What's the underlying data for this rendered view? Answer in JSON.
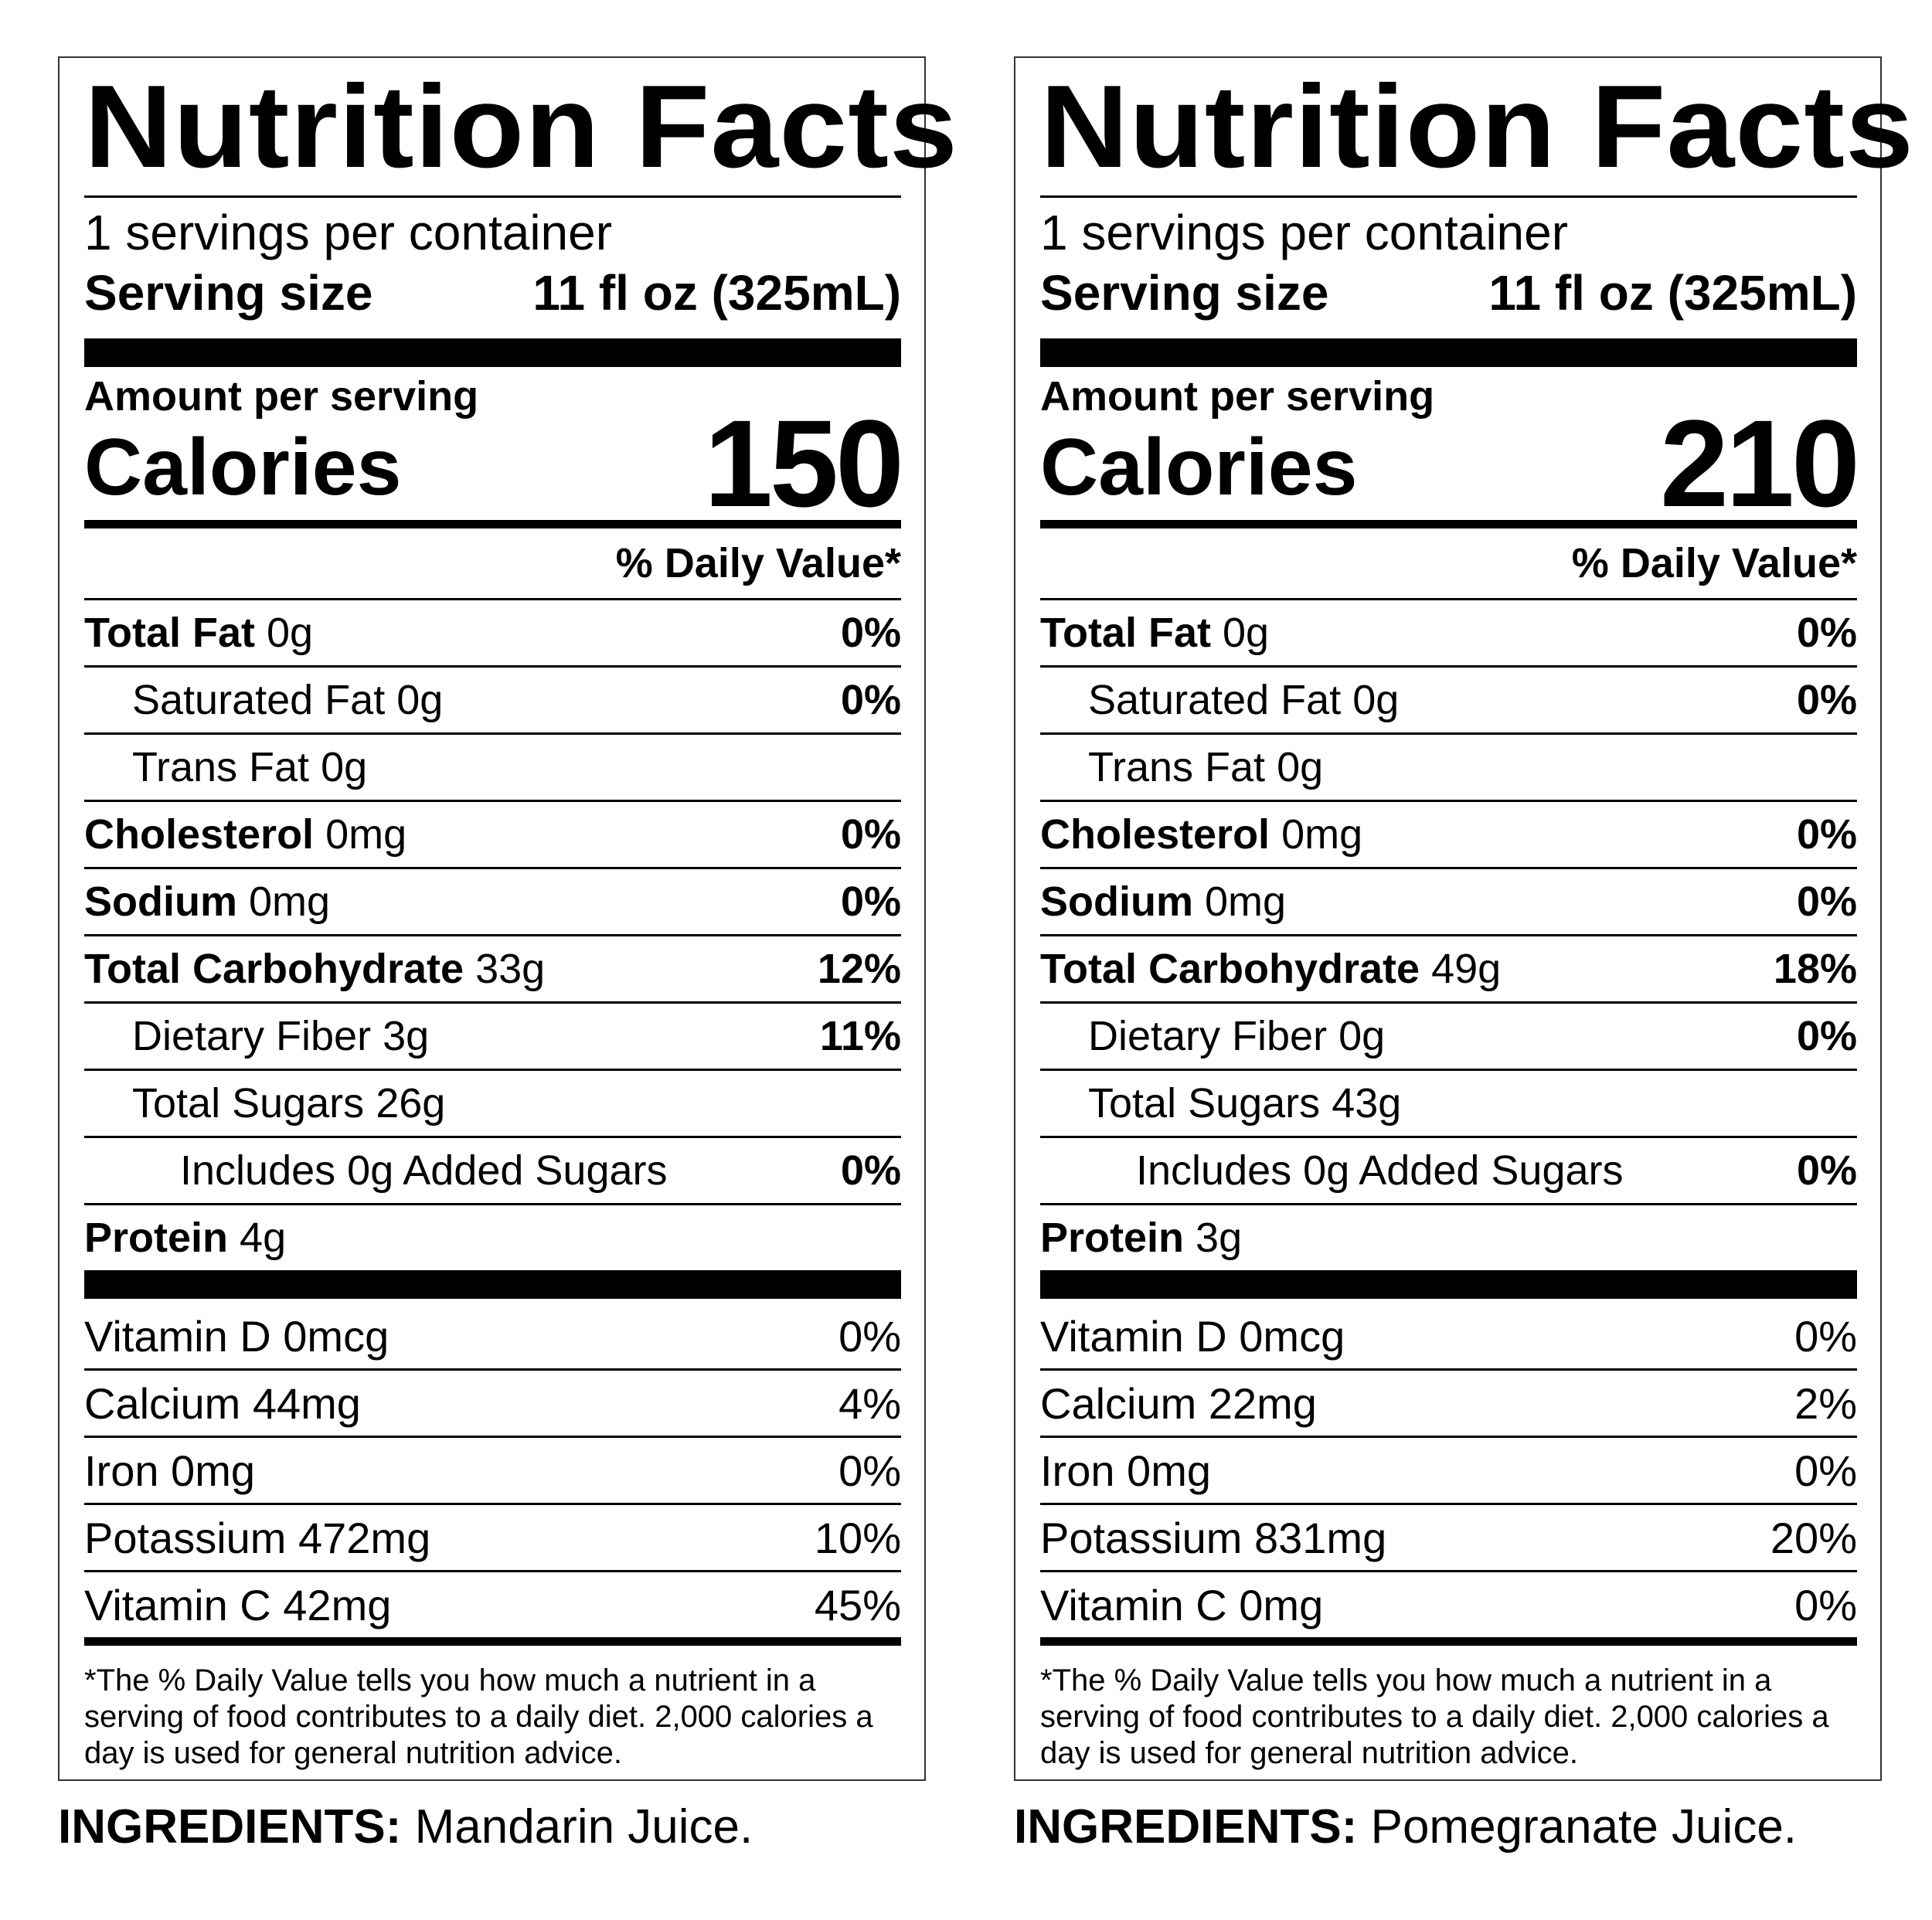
{
  "labels": [
    {
      "title": "Nutrition Facts",
      "servings_per_container": "1 servings per container",
      "serving_size_label": "Serving size",
      "serving_size_value": "11 fl oz (325mL)",
      "amount_per_serving": "Amount per serving",
      "calories_label": "Calories",
      "calories_value": "150",
      "daily_value_header": "% Daily Value*",
      "nutrients": [
        {
          "name": "Total Fat",
          "amount": "0g",
          "dv": "0%"
        },
        {
          "name": "Saturated Fat",
          "amount": "0g",
          "dv": "0%"
        },
        {
          "name": "Trans Fat",
          "amount": "0g",
          "dv": ""
        },
        {
          "name": "Cholesterol",
          "amount": "0mg",
          "dv": "0%"
        },
        {
          "name": "Sodium",
          "amount": "0mg",
          "dv": "0%"
        },
        {
          "name": "Total Carbohydrate",
          "amount": "33g",
          "dv": "12%"
        },
        {
          "name": "Dietary Fiber",
          "amount": "3g",
          "dv": "11%"
        },
        {
          "name": "Total Sugars",
          "amount": "26g",
          "dv": ""
        },
        {
          "name": "Includes",
          "amount": "0g Added Sugars",
          "dv": "0%"
        },
        {
          "name": "Protein",
          "amount": "4g",
          "dv": ""
        }
      ],
      "vitamins": [
        {
          "name": "Vitamin D 0mcg",
          "dv": "0%"
        },
        {
          "name": "Calcium 44mg",
          "dv": "4%"
        },
        {
          "name": "Iron 0mg",
          "dv": "0%"
        },
        {
          "name": "Potassium 472mg",
          "dv": "10%"
        },
        {
          "name": "Vitamin C 42mg",
          "dv": "45%"
        }
      ],
      "footnote_line1": "*The % Daily Value tells you how much a nutrient in a",
      "footnote_line2": "serving of food contributes to a daily diet. 2,000 calories a",
      "footnote_line3": "day is used for general nutrition advice.",
      "ingredients_label": "INGREDIENTS:",
      "ingredients_value": "Mandarin Juice."
    },
    {
      "title": "Nutrition Facts",
      "servings_per_container": "1 servings per container",
      "serving_size_label": "Serving size",
      "serving_size_value": "11 fl oz (325mL)",
      "amount_per_serving": "Amount per serving",
      "calories_label": "Calories",
      "calories_value": "210",
      "daily_value_header": "% Daily Value*",
      "nutrients": [
        {
          "name": "Total Fat",
          "amount": "0g",
          "dv": "0%"
        },
        {
          "name": "Saturated Fat",
          "amount": "0g",
          "dv": "0%"
        },
        {
          "name": "Trans Fat",
          "amount": "0g",
          "dv": ""
        },
        {
          "name": "Cholesterol",
          "amount": "0mg",
          "dv": "0%"
        },
        {
          "name": "Sodium",
          "amount": "0mg",
          "dv": "0%"
        },
        {
          "name": "Total Carbohydrate",
          "amount": "49g",
          "dv": "18%"
        },
        {
          "name": "Dietary Fiber",
          "amount": "0g",
          "dv": "0%"
        },
        {
          "name": "Total Sugars",
          "amount": "43g",
          "dv": ""
        },
        {
          "name": "Includes",
          "amount": "0g Added Sugars",
          "dv": "0%"
        },
        {
          "name": "Protein",
          "amount": "3g",
          "dv": ""
        }
      ],
      "vitamins": [
        {
          "name": "Vitamin D 0mcg",
          "dv": "0%"
        },
        {
          "name": "Calcium 22mg",
          "dv": "2%"
        },
        {
          "name": "Iron 0mg",
          "dv": "0%"
        },
        {
          "name": "Potassium 831mg",
          "dv": "20%"
        },
        {
          "name": "Vitamin C 0mg",
          "dv": "0%"
        }
      ],
      "footnote_line1": "*The % Daily Value tells you how much a nutrient in a",
      "footnote_line2": "serving of food contributes to a daily diet. 2,000 calories a",
      "footnote_line3": "day is used for general nutrition advice.",
      "ingredients_label": "INGREDIENTS:",
      "ingredients_value": "Pomegranate Juice."
    }
  ]
}
